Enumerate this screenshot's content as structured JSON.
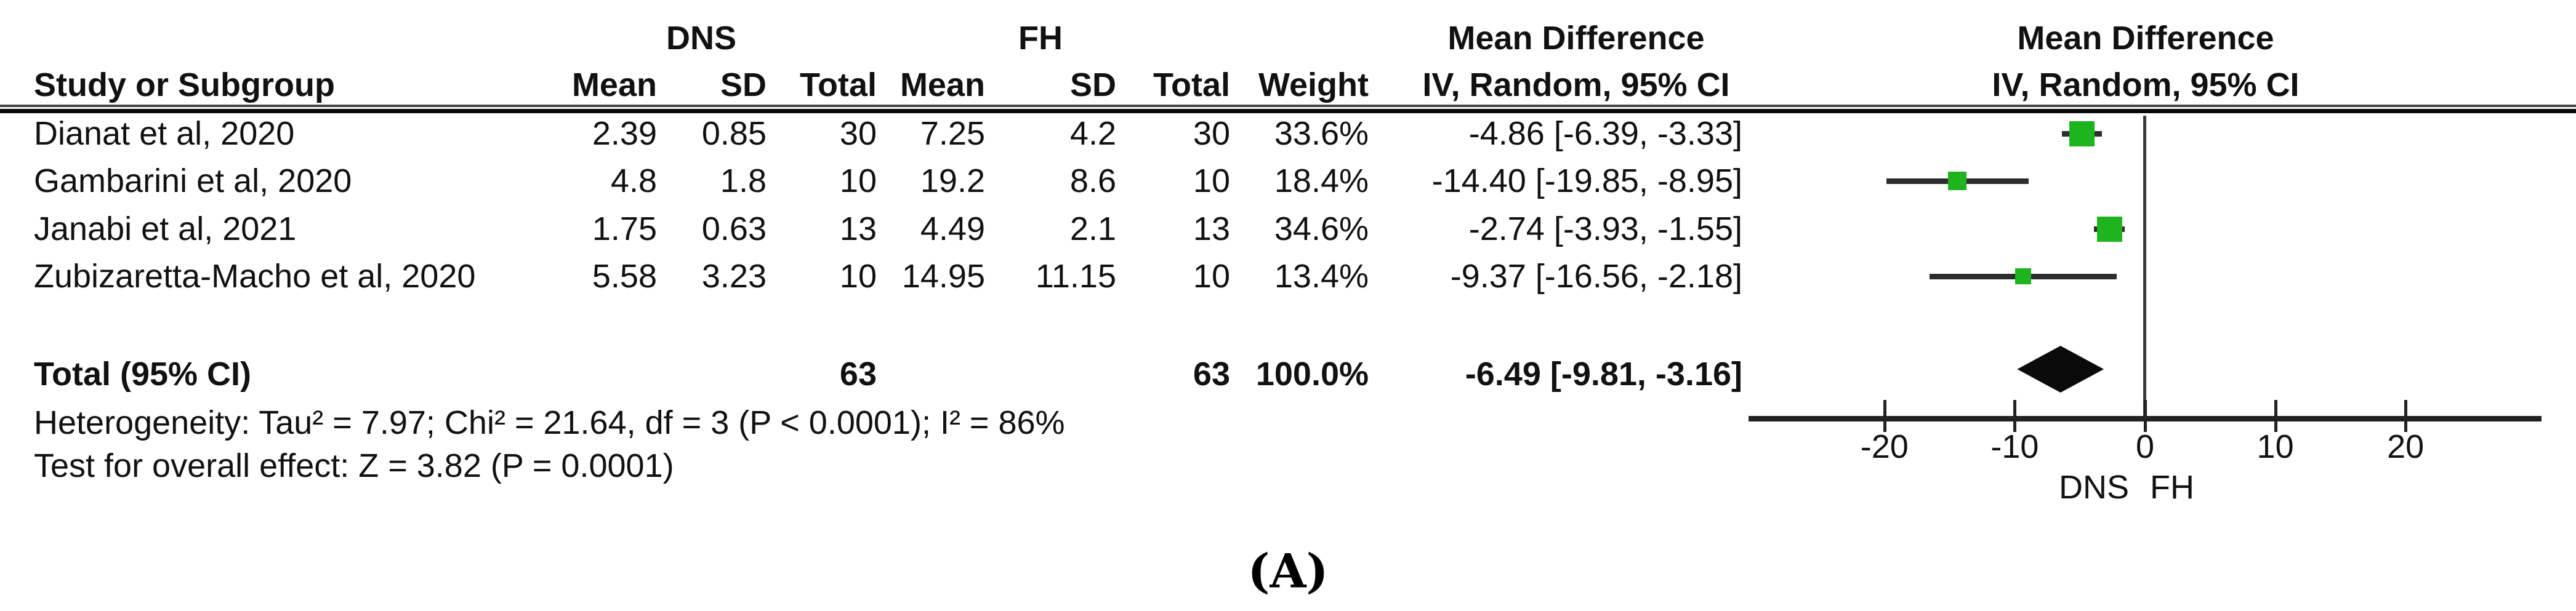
{
  "figure": {
    "panel_label": "(A)",
    "header": {
      "groups": [
        "DNS",
        "FH"
      ],
      "effect_title": "Mean Difference",
      "effect_sub": "IV, Random, 95% CI",
      "plot_title": "Mean Difference",
      "plot_sub": "IV, Random, 95% CI",
      "columns": [
        "Study or Subgroup",
        "Mean",
        "SD",
        "Total",
        "Mean",
        "SD",
        "Total",
        "Weight",
        "IV, Random, 95% CI"
      ]
    }
  },
  "chart_data": {
    "type": "forest",
    "effect_measure": "Mean Difference (IV, Random, 95% CI)",
    "group_labels": [
      "DNS",
      "FH"
    ],
    "studies": [
      {
        "name": "Dianat et al, 2020",
        "g1_mean": "2.39",
        "g1_sd": "0.85",
        "g1_total": "30",
        "g2_mean": "7.25",
        "g2_sd": "4.2",
        "g2_total": "30",
        "weight": "33.6%",
        "ci_text": "-4.86 [-6.39, -3.33]",
        "md": -4.86,
        "lo": -6.39,
        "hi": -3.33,
        "weight_pct": 33.6
      },
      {
        "name": "Gambarini et al, 2020",
        "g1_mean": "4.8",
        "g1_sd": "1.8",
        "g1_total": "10",
        "g2_mean": "19.2",
        "g2_sd": "8.6",
        "g2_total": "10",
        "weight": "18.4%",
        "ci_text": "-14.40 [-19.85, -8.95]",
        "md": -14.4,
        "lo": -19.85,
        "hi": -8.95,
        "weight_pct": 18.4
      },
      {
        "name": "Janabi et al, 2021",
        "g1_mean": "1.75",
        "g1_sd": "0.63",
        "g1_total": "13",
        "g2_mean": "4.49",
        "g2_sd": "2.1",
        "g2_total": "13",
        "weight": "34.6%",
        "ci_text": "-2.74 [-3.93, -1.55]",
        "md": -2.74,
        "lo": -3.93,
        "hi": -1.55,
        "weight_pct": 34.6
      },
      {
        "name": "Zubizaretta-Macho et al, 2020",
        "g1_mean": "5.58",
        "g1_sd": "3.23",
        "g1_total": "10",
        "g2_mean": "14.95",
        "g2_sd": "11.15",
        "g2_total": "10",
        "weight": "13.4%",
        "ci_text": "-9.37 [-16.56, -2.18]",
        "md": -9.37,
        "lo": -16.56,
        "hi": -2.18,
        "weight_pct": 13.4
      }
    ],
    "total": {
      "label": "Total (95% CI)",
      "g1_total": "63",
      "g2_total": "63",
      "weight": "100.0%",
      "ci_text": "-6.49 [-9.81, -3.16]",
      "md": -6.49,
      "lo": -9.81,
      "hi": -3.16
    },
    "heterogeneity": "Heterogeneity: Tau² = 7.97; Chi² = 21.64, df = 3 (P < 0.0001); I² = 86%",
    "overall_effect": "Test for overall effect: Z = 3.82 (P = 0.0001)",
    "axis": {
      "ticks": [
        "-20",
        "-10",
        "0",
        "10",
        "20"
      ],
      "tick_values": [
        -20,
        -10,
        0,
        10,
        20
      ],
      "min": -25,
      "max": 25,
      "favours_left": "DNS",
      "favours_right": "FH"
    },
    "marker_color": "#1db41d",
    "diamond_color": "#0b0b0b",
    "line_color": "#2d2d2d"
  }
}
